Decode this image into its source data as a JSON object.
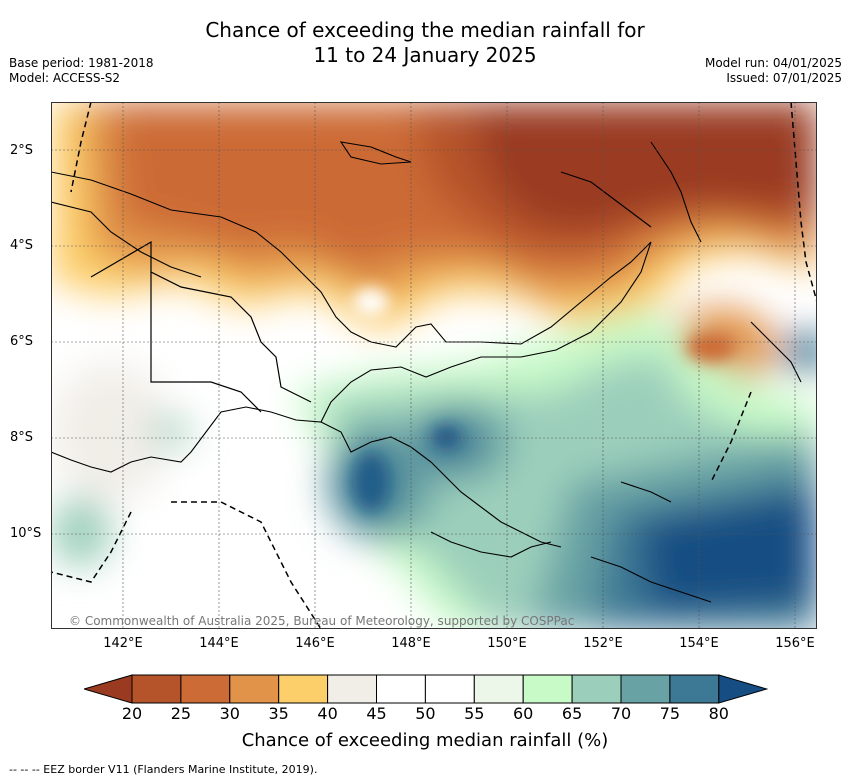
{
  "title_line1": "Chance of exceeding the median rainfall for",
  "title_line2": "11 to 24 January 2025",
  "base_period": "Base period: 1981-2018",
  "model": "Model: ACCESS-S2",
  "model_run": "Model run: 04/01/2025",
  "issued": "Issued: 07/01/2025",
  "copyright": "© Commonwealth of Australia 2025, Bureau of Meteorology, supported by COSPPac",
  "lat_labels": [
    "2°S",
    "4°S",
    "6°S",
    "8°S",
    "10°S"
  ],
  "lon_labels": [
    "142°E",
    "144°E",
    "146°E",
    "148°E",
    "150°E",
    "152°E",
    "154°E",
    "156°E"
  ],
  "colorbar": {
    "ticks": [
      "20",
      "25",
      "30",
      "35",
      "40",
      "45",
      "50",
      "55",
      "60",
      "65",
      "70",
      "75",
      "80"
    ],
    "colors": [
      "#9a3a20",
      "#b5532b",
      "#cc6b35",
      "#e1934a",
      "#fdcf6b",
      "#f1eee8",
      "#ffffff",
      "#ffffff",
      "#ecf6e9",
      "#c8fac8",
      "#9ccfbb",
      "#68a2a4",
      "#3d7894",
      "#164e83"
    ],
    "label": "Chance of exceeding median rainfall (%)"
  },
  "footnote": "-- -- -- EEZ border V11 (Flanders Marine Institute, 2019)."
}
